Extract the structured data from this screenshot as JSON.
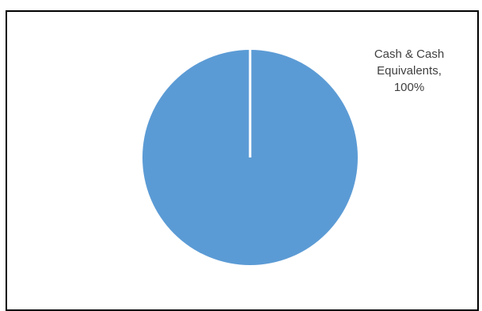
{
  "chart_data": {
    "type": "pie",
    "title": "",
    "slices": [
      {
        "label": "Cash & Cash Equivalents",
        "value": 100,
        "data_label_lines": [
          "Cash & Cash",
          "Equivalents,",
          "100%"
        ]
      }
    ],
    "colors": {
      "slice": "#5B9BD5",
      "separator": "#ffffff"
    },
    "legend": "none"
  }
}
